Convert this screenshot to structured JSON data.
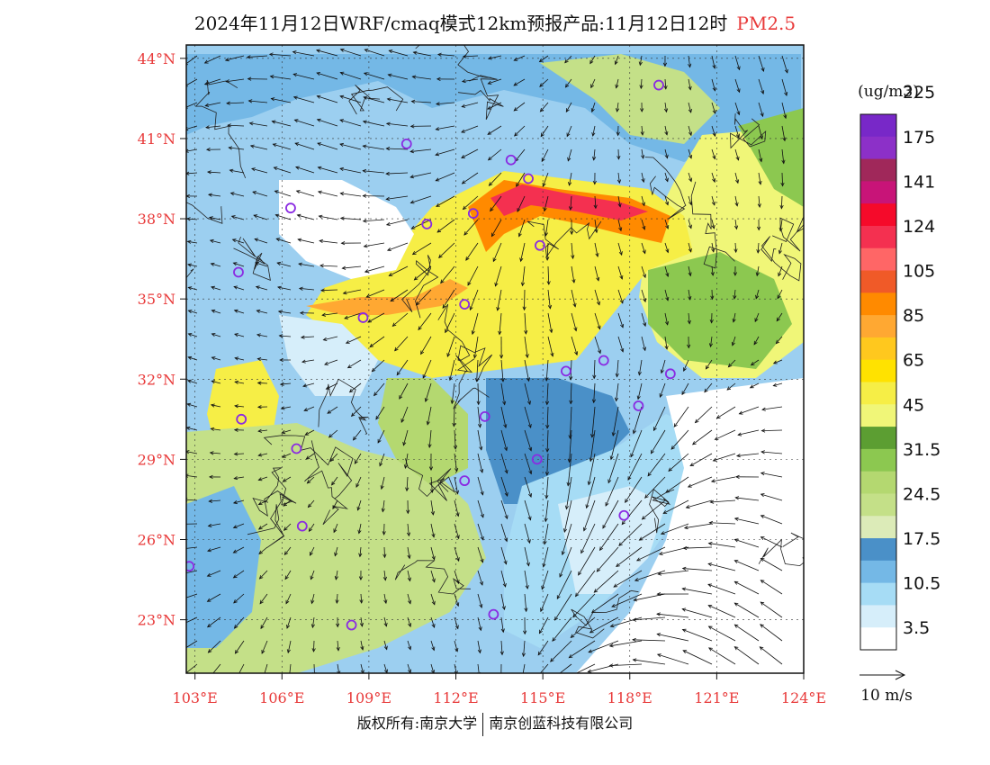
{
  "header": {
    "title": "2024年11月12日WRF/cmaq模式12km预报产品:11月12日12时",
    "pollutant": "PM2.5"
  },
  "map": {
    "lat_labels": [
      "44°N",
      "41°N",
      "38°N",
      "35°N",
      "32°N",
      "29°N",
      "26°N",
      "23°N"
    ],
    "lon_labels": [
      "103°E",
      "106°E",
      "109°E",
      "112°E",
      "115°E",
      "118°E",
      "121°E",
      "124°E"
    ]
  },
  "colorbar": {
    "unit": "(ug/m3)",
    "colors": [
      "#ffffff",
      "#d6eefa",
      "#a6dcf5",
      "#74b8e6",
      "#4a90c8",
      "#dcebb8",
      "#c4e088",
      "#b4d870",
      "#8cc850",
      "#5c9e32",
      "#f0f678",
      "#f6ee46",
      "#ffe200",
      "#ffc81e",
      "#ffa832",
      "#ff8a00",
      "#f05a28",
      "#ff6666",
      "#f43050",
      "#f50a2a",
      "#c81478",
      "#a0285a",
      "#8c30c8",
      "#7828c8"
    ],
    "labels": [
      "3.5",
      "10.5",
      "17.5",
      "24.5",
      "31.5",
      "45",
      "65",
      "85",
      "105",
      "124",
      "141",
      "175",
      "225"
    ]
  },
  "wind_legend": {
    "label": "10 m/s"
  },
  "stations": [
    {
      "lon": 119.0,
      "lat": 43.0
    },
    {
      "lon": 110.3,
      "lat": 40.8
    },
    {
      "lon": 113.9,
      "lat": 40.2
    },
    {
      "lon": 114.5,
      "lat": 39.5
    },
    {
      "lon": 111.0,
      "lat": 37.8
    },
    {
      "lon": 112.6,
      "lat": 38.2
    },
    {
      "lon": 106.3,
      "lat": 38.4
    },
    {
      "lon": 114.9,
      "lat": 37.0
    },
    {
      "lon": 104.5,
      "lat": 36.0
    },
    {
      "lon": 112.3,
      "lat": 34.8
    },
    {
      "lon": 108.8,
      "lat": 34.3
    },
    {
      "lon": 115.8,
      "lat": 32.3
    },
    {
      "lon": 117.1,
      "lat": 32.7
    },
    {
      "lon": 119.4,
      "lat": 32.2
    },
    {
      "lon": 118.3,
      "lat": 31.0
    },
    {
      "lon": 113.0,
      "lat": 30.6
    },
    {
      "lon": 104.6,
      "lat": 30.5
    },
    {
      "lon": 106.5,
      "lat": 29.4
    },
    {
      "lon": 114.8,
      "lat": 29.0
    },
    {
      "lon": 112.3,
      "lat": 28.2
    },
    {
      "lon": 117.8,
      "lat": 26.9
    },
    {
      "lon": 106.7,
      "lat": 26.5
    },
    {
      "lon": 102.8,
      "lat": 25.0
    },
    {
      "lon": 108.4,
      "lat": 22.8
    },
    {
      "lon": 113.3,
      "lat": 23.2
    }
  ],
  "footer": {
    "copyright": "版权所有:南京大学",
    "company": "南京创蓝科技有限公司"
  }
}
